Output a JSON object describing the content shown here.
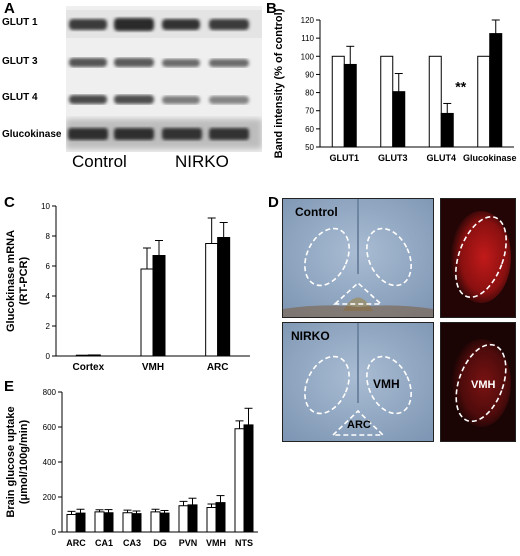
{
  "panels": {
    "A": {
      "letter": "A",
      "rows": [
        "GLUT 1",
        "GLUT 3",
        "GLUT 4",
        "Glucokinase"
      ],
      "groups": [
        "Control",
        "NIRKO"
      ]
    },
    "B": {
      "letter": "B"
    },
    "C": {
      "letter": "C"
    },
    "D": {
      "letter": "D",
      "labels": {
        "control": "Control",
        "nirko": "NIRKO",
        "vmh": "VMH",
        "arc": "ARC",
        "vmh_red": "VMH"
      }
    },
    "E": {
      "letter": "E"
    }
  },
  "chart_data": [
    {
      "id": "B",
      "type": "bar",
      "categories": [
        "GLUT1",
        "GLUT3",
        "GLUT4",
        "Glucokinase"
      ],
      "series": [
        {
          "values": [
            100,
            100,
            100,
            100
          ],
          "errors": [
            0,
            0,
            0,
            0
          ],
          "fill": "#ffffff"
        },
        {
          "values": [
            95.5,
            80.5,
            68.5,
            112.5
          ],
          "errors": [
            10,
            10,
            5.5,
            7.5
          ],
          "fill": "#000000"
        }
      ],
      "ylabel": "Band intensity (% of control)",
      "ylim": [
        50,
        120
      ],
      "yticks": [
        50,
        60,
        70,
        80,
        90,
        100,
        110,
        120
      ],
      "annotations": [
        {
          "category": "GLUT4",
          "text": "**"
        }
      ]
    },
    {
      "id": "C",
      "type": "bar",
      "categories": [
        "Cortex",
        "VMH",
        "ARC"
      ],
      "series": [
        {
          "values": [
            0.05,
            5.8,
            7.5
          ],
          "errors": [
            0,
            1.4,
            1.7
          ],
          "fill": "#ffffff"
        },
        {
          "values": [
            0.07,
            6.7,
            7.9
          ],
          "errors": [
            0,
            1.0,
            1.0
          ],
          "fill": "#000000"
        }
      ],
      "ylabel_lines": [
        "Glucokinase mRNA",
        "(RT-PCR)"
      ],
      "ylim": [
        0,
        10
      ],
      "yticks": [
        0,
        2,
        4,
        6,
        8,
        10
      ]
    },
    {
      "id": "E",
      "type": "bar",
      "categories": [
        "ARC",
        "CA1",
        "CA3",
        "DG",
        "PVN",
        "VMH",
        "NTS"
      ],
      "series": [
        {
          "values": [
            100,
            115,
            110,
            115,
            150,
            140,
            590
          ],
          "errors": [
            18,
            12,
            15,
            15,
            25,
            20,
            45
          ],
          "fill": "#ffffff"
        },
        {
          "values": [
            108,
            110,
            105,
            108,
            155,
            168,
            612
          ],
          "errors": [
            22,
            18,
            15,
            15,
            38,
            40,
            95
          ],
          "fill": "#000000"
        }
      ],
      "ylabel_lines": [
        "Brain glucose uptake",
        "(μmol/100g/min)"
      ],
      "ylim": [
        0,
        800
      ],
      "yticks": [
        0,
        200,
        400,
        600,
        800
      ]
    }
  ]
}
